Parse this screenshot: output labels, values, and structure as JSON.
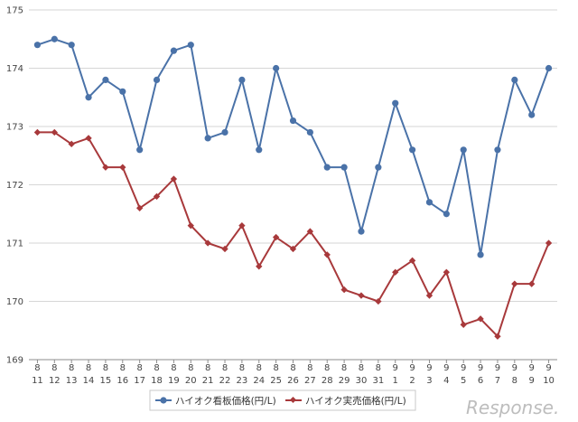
{
  "chart_data": {
    "type": "line",
    "categories": [
      [
        "8",
        "11"
      ],
      [
        "8",
        "12"
      ],
      [
        "8",
        "13"
      ],
      [
        "8",
        "14"
      ],
      [
        "8",
        "15"
      ],
      [
        "8",
        "16"
      ],
      [
        "8",
        "17"
      ],
      [
        "8",
        "18"
      ],
      [
        "8",
        "19"
      ],
      [
        "8",
        "20"
      ],
      [
        "8",
        "21"
      ],
      [
        "8",
        "22"
      ],
      [
        "8",
        "23"
      ],
      [
        "8",
        "24"
      ],
      [
        "8",
        "25"
      ],
      [
        "8",
        "26"
      ],
      [
        "8",
        "27"
      ],
      [
        "8",
        "28"
      ],
      [
        "8",
        "29"
      ],
      [
        "8",
        "30"
      ],
      [
        "8",
        "31"
      ],
      [
        "9",
        "1"
      ],
      [
        "9",
        "2"
      ],
      [
        "9",
        "3"
      ],
      [
        "9",
        "4"
      ],
      [
        "9",
        "5"
      ],
      [
        "9",
        "6"
      ],
      [
        "9",
        "7"
      ],
      [
        "9",
        "8"
      ],
      [
        "9",
        "9"
      ],
      [
        "9",
        "10"
      ]
    ],
    "series": [
      {
        "name": "ハイオク看板価格(円/L)",
        "color": "#4a72a8",
        "marker": "circle",
        "values": [
          174.4,
          174.5,
          174.4,
          173.5,
          173.8,
          173.6,
          172.6,
          173.8,
          174.3,
          174.4,
          172.8,
          172.9,
          173.8,
          172.6,
          174.0,
          173.1,
          172.9,
          172.3,
          172.3,
          171.2,
          172.3,
          173.4,
          172.6,
          171.7,
          171.5,
          172.6,
          170.8,
          172.6,
          173.8,
          173.2,
          174.0
        ]
      },
      {
        "name": "ハイオク実売価格(円/L)",
        "color": "#a8393b",
        "marker": "diamond",
        "values": [
          172.9,
          172.9,
          172.7,
          172.8,
          172.3,
          172.3,
          171.6,
          171.8,
          172.1,
          171.3,
          171.0,
          170.9,
          171.3,
          170.6,
          171.1,
          170.9,
          171.2,
          170.8,
          170.2,
          170.1,
          170.0,
          170.5,
          170.7,
          170.1,
          170.5,
          169.6,
          169.7,
          169.4,
          170.3,
          170.3,
          171.0
        ]
      }
    ],
    "ylim": [
      169,
      175
    ],
    "yticks": [
      169,
      170,
      171,
      172,
      173,
      174,
      175
    ],
    "grid": true,
    "legend_position": "bottom-center"
  },
  "watermark": {
    "text": "Response."
  }
}
